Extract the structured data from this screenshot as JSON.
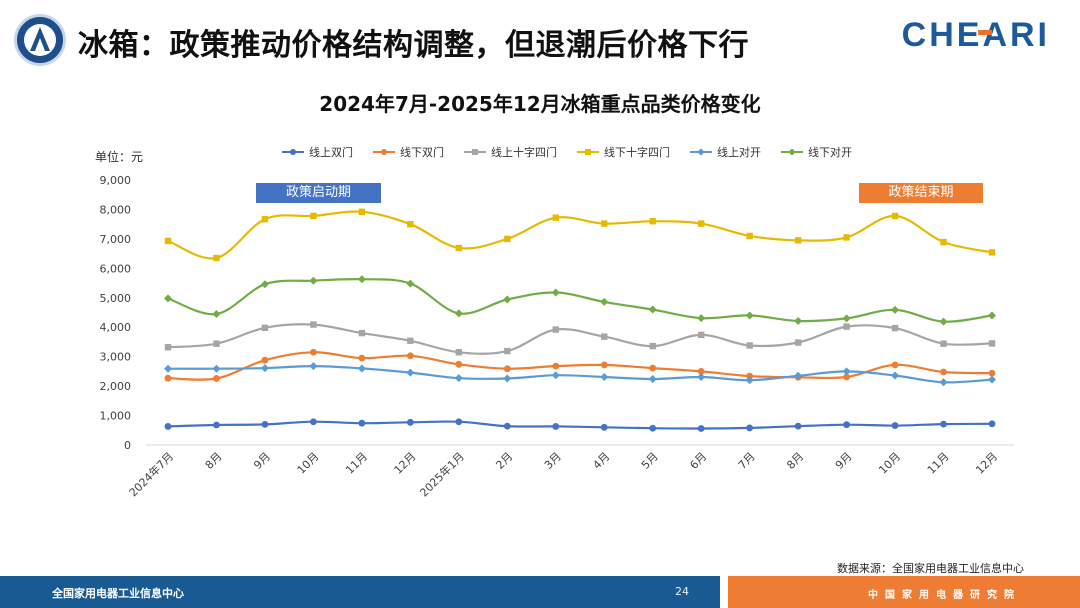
{
  "header": {
    "title": "冰箱：政策推动价格结构调整，但退潮后价格下行",
    "brand": "CHEARI"
  },
  "chart_data": {
    "type": "line",
    "title": "2024年7月-2025年12月冰箱重点品类价格变化",
    "unit_label": "单位：元",
    "categories": [
      "2024年7月",
      "8月",
      "9月",
      "10月",
      "11月",
      "12月",
      "2025年1月",
      "2月",
      "3月",
      "4月",
      "5月",
      "6月",
      "7月",
      "8月",
      "9月",
      "10月",
      "11月",
      "12月"
    ],
    "ylim": [
      0,
      9000
    ],
    "yticks": [
      "0",
      "1,000",
      "2,000",
      "3,000",
      "4,000",
      "5,000",
      "6,000",
      "7,000",
      "8,000",
      "9,000"
    ],
    "grid": false,
    "legend_position": "top",
    "series": [
      {
        "name": "线上双门",
        "color": "#4472c4",
        "marker": "circle",
        "values": [
          630,
          680,
          700,
          790,
          740,
          770,
          790,
          640,
          630,
          600,
          570,
          560,
          580,
          640,
          690,
          660,
          710,
          720
        ]
      },
      {
        "name": "线下双门",
        "color": "#ed7d31",
        "marker": "circle",
        "values": [
          2270,
          2260,
          2880,
          3150,
          2950,
          3030,
          2740,
          2590,
          2680,
          2720,
          2610,
          2500,
          2340,
          2300,
          2310,
          2720,
          2480,
          2440
        ]
      },
      {
        "name": "线上十字四门",
        "color": "#a5a5a5",
        "marker": "square",
        "values": [
          3320,
          3440,
          3980,
          4090,
          3800,
          3540,
          3150,
          3190,
          3920,
          3680,
          3360,
          3740,
          3380,
          3480,
          4020,
          3970,
          3440,
          3450
        ]
      },
      {
        "name": "线下十字四门",
        "color": "#e7b900",
        "marker": "square",
        "values": [
          6930,
          6350,
          7670,
          7780,
          7920,
          7500,
          6690,
          7000,
          7720,
          7520,
          7600,
          7520,
          7100,
          6950,
          7050,
          7780,
          6890,
          6540
        ]
      },
      {
        "name": "线上对开",
        "color": "#5b9bd5",
        "marker": "diamond",
        "values": [
          2590,
          2590,
          2610,
          2680,
          2600,
          2460,
          2270,
          2260,
          2370,
          2310,
          2240,
          2310,
          2200,
          2350,
          2500,
          2360,
          2130,
          2220
        ]
      },
      {
        "name": "线下对开",
        "color": "#70ad47",
        "marker": "diamond",
        "values": [
          4980,
          4450,
          5460,
          5580,
          5630,
          5480,
          4470,
          4940,
          5180,
          4860,
          4600,
          4310,
          4400,
          4210,
          4300,
          4590,
          4190,
          4400
        ]
      }
    ],
    "annotations": [
      "政策启动期",
      "政策结束期"
    ]
  },
  "footer": {
    "source": "数据来源：全国家用电器工业信息中心",
    "left_org": "全国家用电器工业信息中心",
    "page_number": "24",
    "right_org": "中国家用电器研究院"
  }
}
